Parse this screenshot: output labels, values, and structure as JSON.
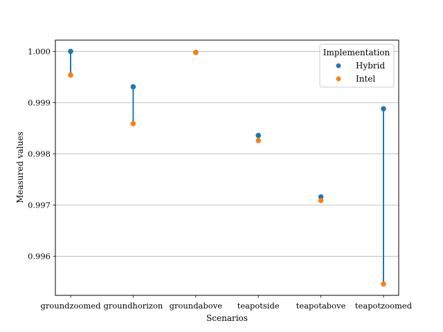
{
  "chart_data": {
    "type": "scatter",
    "categories": [
      "groundzoomed",
      "groundhorizon",
      "groundabove",
      "teapotside",
      "teapotabove",
      "teapotzoomed"
    ],
    "series": [
      {
        "name": "Hybrid",
        "values": [
          1.0,
          0.99931,
          0.99998,
          0.99836,
          0.99716,
          0.99888
        ]
      },
      {
        "name": "Intel",
        "values": [
          0.99954,
          0.99859,
          0.99998,
          0.99826,
          0.99709,
          0.99546
        ]
      }
    ],
    "xlabel": "Scenarios",
    "ylabel": "Measured values",
    "ylim": [
      0.99524,
      1.00022
    ],
    "yticks": [
      "0.996",
      "0.997",
      "0.998",
      "0.999",
      "1.000"
    ],
    "grid": "horizontal",
    "legend": {
      "title": "Implementation",
      "placement": "top-right"
    },
    "colors": {
      "Hybrid": "#1f77b4",
      "Intel": "#ff7f0e",
      "connector": "#1f77b4",
      "grid": "#b0b0b0"
    }
  }
}
